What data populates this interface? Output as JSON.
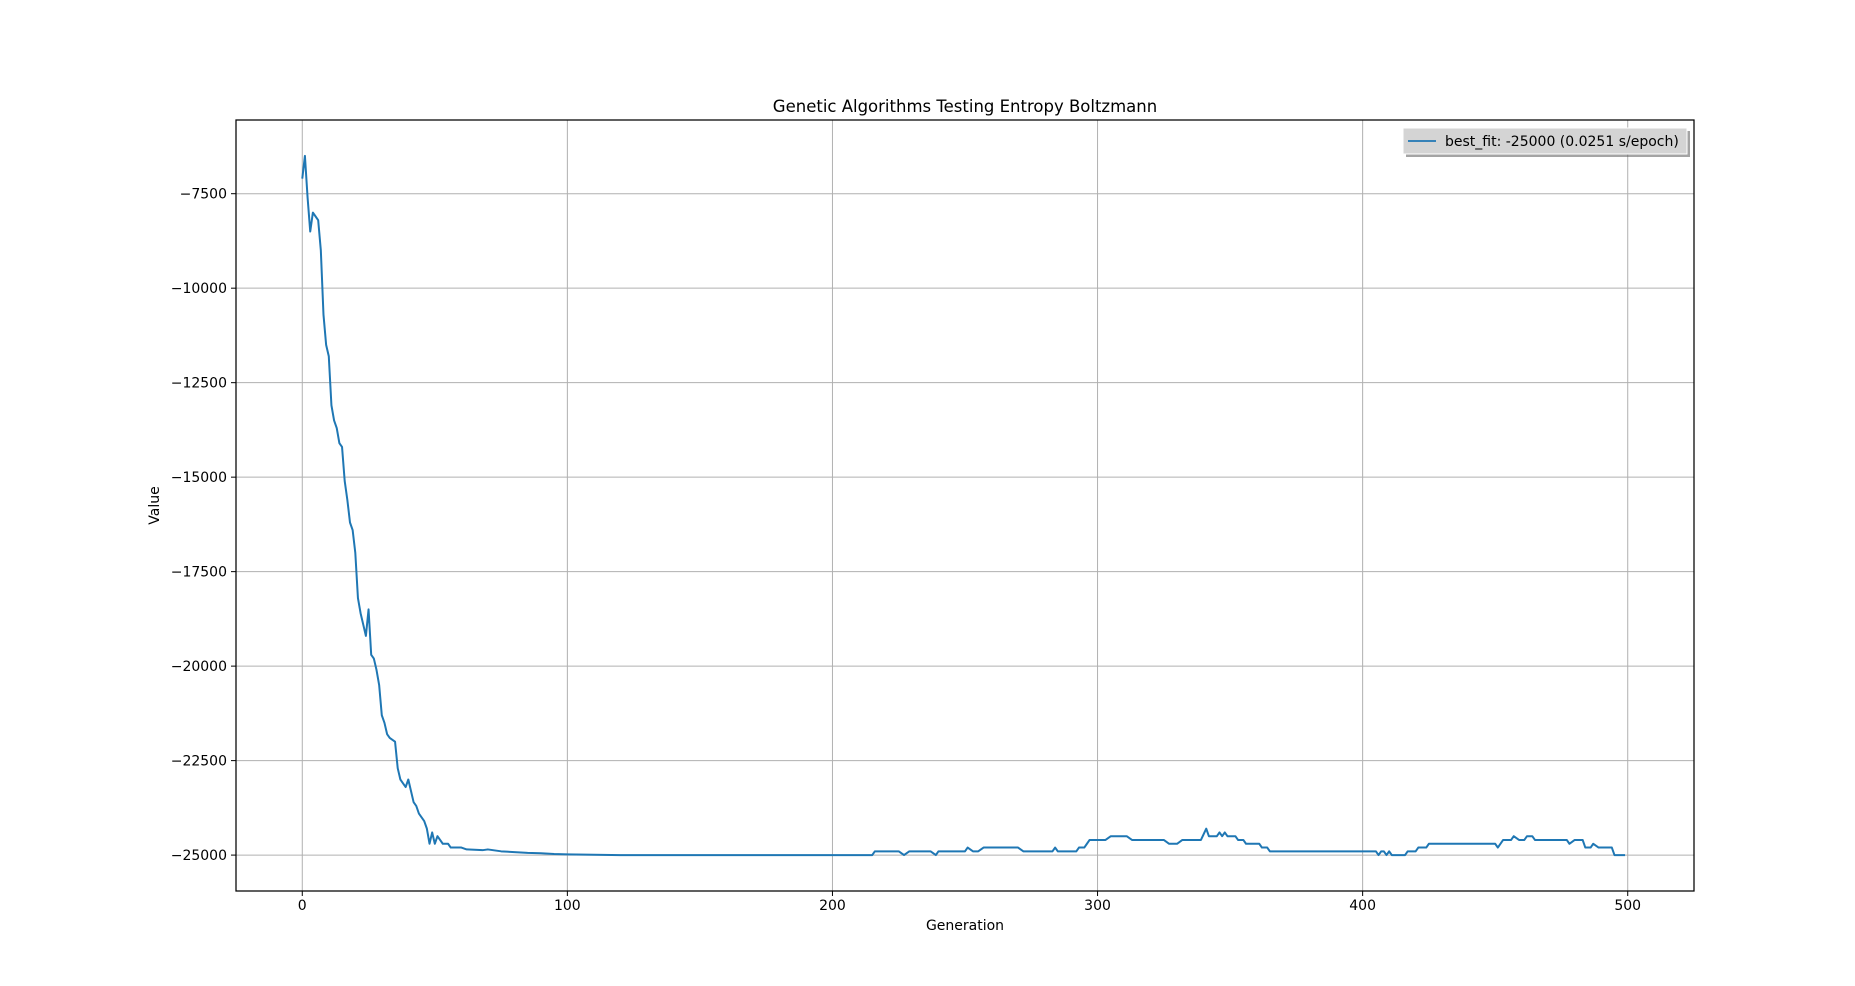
{
  "chart_data": {
    "type": "line",
    "title": "Genetic Algorithms Testing Entropy Boltzmann",
    "xlabel": "Generation",
    "ylabel": "Value",
    "xlim": [
      -25,
      525
    ],
    "ylim": [
      -25950,
      -5550
    ],
    "xticks": [
      0,
      100,
      200,
      300,
      400,
      500
    ],
    "yticks": [
      -25000,
      -22500,
      -20000,
      -17500,
      -15000,
      -12500,
      -10000,
      -7500
    ],
    "grid": true,
    "legend_position": "top-right",
    "line_color": "#1f77b4",
    "series": [
      {
        "name": "best_fit: -25000 (0.0251 s/epoch)",
        "points": [
          [
            0,
            -7100
          ],
          [
            1,
            -6500
          ],
          [
            2,
            -7600
          ],
          [
            3,
            -8500
          ],
          [
            4,
            -8000
          ],
          [
            5,
            -8100
          ],
          [
            6,
            -8200
          ],
          [
            7,
            -9000
          ],
          [
            8,
            -10700
          ],
          [
            9,
            -11500
          ],
          [
            10,
            -11800
          ],
          [
            11,
            -13100
          ],
          [
            12,
            -13500
          ],
          [
            13,
            -13700
          ],
          [
            14,
            -14100
          ],
          [
            15,
            -14200
          ],
          [
            16,
            -15100
          ],
          [
            17,
            -15600
          ],
          [
            18,
            -16200
          ],
          [
            19,
            -16400
          ],
          [
            20,
            -17000
          ],
          [
            21,
            -18200
          ],
          [
            22,
            -18600
          ],
          [
            23,
            -18900
          ],
          [
            24,
            -19200
          ],
          [
            25,
            -18500
          ],
          [
            26,
            -19700
          ],
          [
            27,
            -19800
          ],
          [
            28,
            -20100
          ],
          [
            29,
            -20500
          ],
          [
            30,
            -21300
          ],
          [
            31,
            -21500
          ],
          [
            32,
            -21800
          ],
          [
            33,
            -21900
          ],
          [
            35,
            -22000
          ],
          [
            36,
            -22700
          ],
          [
            37,
            -23000
          ],
          [
            38,
            -23100
          ],
          [
            39,
            -23200
          ],
          [
            40,
            -23000
          ],
          [
            41,
            -23300
          ],
          [
            42,
            -23600
          ],
          [
            43,
            -23700
          ],
          [
            44,
            -23900
          ],
          [
            45,
            -24000
          ],
          [
            46,
            -24100
          ],
          [
            47,
            -24300
          ],
          [
            48,
            -24700
          ],
          [
            49,
            -24400
          ],
          [
            50,
            -24700
          ],
          [
            51,
            -24500
          ],
          [
            52,
            -24600
          ],
          [
            53,
            -24700
          ],
          [
            55,
            -24700
          ],
          [
            56,
            -24800
          ],
          [
            58,
            -24800
          ],
          [
            60,
            -24800
          ],
          [
            62,
            -24850
          ],
          [
            65,
            -24860
          ],
          [
            68,
            -24870
          ],
          [
            70,
            -24850
          ],
          [
            75,
            -24900
          ],
          [
            80,
            -24920
          ],
          [
            85,
            -24940
          ],
          [
            90,
            -24950
          ],
          [
            95,
            -24970
          ],
          [
            100,
            -24980
          ],
          [
            110,
            -24990
          ],
          [
            120,
            -25000
          ],
          [
            215,
            -25000
          ],
          [
            216,
            -24900
          ],
          [
            225,
            -24900
          ],
          [
            227,
            -25000
          ],
          [
            229,
            -24900
          ],
          [
            237,
            -24900
          ],
          [
            239,
            -25000
          ],
          [
            240,
            -24900
          ],
          [
            250,
            -24900
          ],
          [
            251,
            -24800
          ],
          [
            253,
            -24900
          ],
          [
            255,
            -24900
          ],
          [
            257,
            -24800
          ],
          [
            270,
            -24800
          ],
          [
            272,
            -24900
          ],
          [
            283,
            -24900
          ],
          [
            284,
            -24800
          ],
          [
            285,
            -24900
          ],
          [
            292,
            -24900
          ],
          [
            293,
            -24800
          ],
          [
            295,
            -24800
          ],
          [
            296,
            -24700
          ],
          [
            297,
            -24600
          ],
          [
            303,
            -24600
          ],
          [
            305,
            -24500
          ],
          [
            311,
            -24500
          ],
          [
            313,
            -24600
          ],
          [
            325,
            -24600
          ],
          [
            327,
            -24700
          ],
          [
            330,
            -24700
          ],
          [
            332,
            -24600
          ],
          [
            339,
            -24600
          ],
          [
            341,
            -24300
          ],
          [
            342,
            -24500
          ],
          [
            345,
            -24500
          ],
          [
            346,
            -24400
          ],
          [
            347,
            -24500
          ],
          [
            348,
            -24400
          ],
          [
            349,
            -24500
          ],
          [
            352,
            -24500
          ],
          [
            353,
            -24600
          ],
          [
            355,
            -24600
          ],
          [
            356,
            -24700
          ],
          [
            361,
            -24700
          ],
          [
            362,
            -24800
          ],
          [
            364,
            -24800
          ],
          [
            365,
            -24900
          ],
          [
            405,
            -24900
          ],
          [
            406,
            -25000
          ],
          [
            407,
            -24900
          ],
          [
            408,
            -24900
          ],
          [
            409,
            -25000
          ],
          [
            410,
            -24900
          ],
          [
            411,
            -25000
          ],
          [
            416,
            -25000
          ],
          [
            417,
            -24900
          ],
          [
            420,
            -24900
          ],
          [
            421,
            -24800
          ],
          [
            424,
            -24800
          ],
          [
            425,
            -24700
          ],
          [
            450,
            -24700
          ],
          [
            451,
            -24800
          ],
          [
            453,
            -24600
          ],
          [
            456,
            -24600
          ],
          [
            457,
            -24500
          ],
          [
            459,
            -24600
          ],
          [
            461,
            -24600
          ],
          [
            462,
            -24500
          ],
          [
            464,
            -24500
          ],
          [
            465,
            -24600
          ],
          [
            477,
            -24600
          ],
          [
            478,
            -24700
          ],
          [
            480,
            -24600
          ],
          [
            483,
            -24600
          ],
          [
            484,
            -24800
          ],
          [
            486,
            -24800
          ],
          [
            487,
            -24700
          ],
          [
            489,
            -24800
          ],
          [
            494,
            -24800
          ],
          [
            495,
            -25000
          ],
          [
            499,
            -25000
          ]
        ]
      }
    ]
  }
}
